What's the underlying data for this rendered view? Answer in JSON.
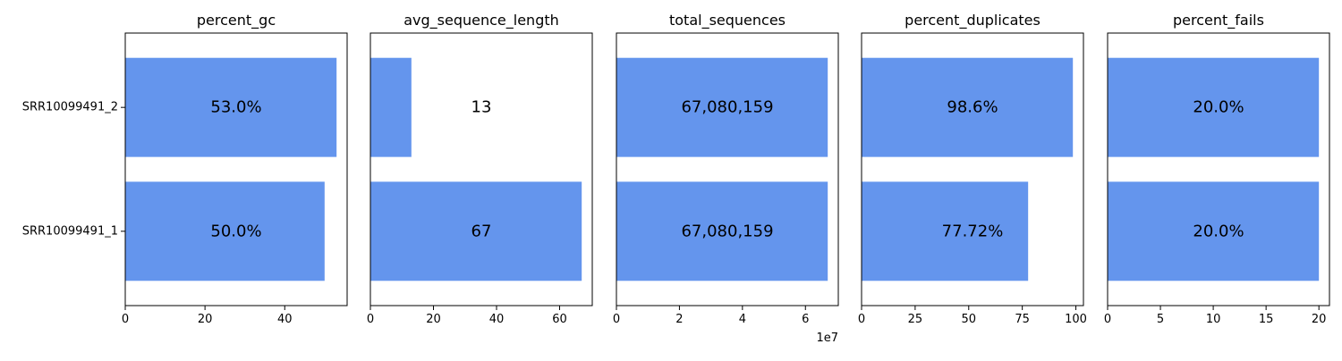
{
  "chart_data": [
    {
      "type": "bar",
      "orientation": "horizontal",
      "title": "percent_gc",
      "categories": [
        "SRR10099491_2",
        "SRR10099491_1"
      ],
      "values": [
        53.0,
        50.0
      ],
      "value_labels": [
        "53.0%",
        "50.0%"
      ],
      "xlim": [
        0,
        55.65
      ],
      "xticks": [
        0,
        20,
        40
      ],
      "offset_text": "",
      "show_category_labels": true
    },
    {
      "type": "bar",
      "orientation": "horizontal",
      "title": "avg_sequence_length",
      "categories": [
        "SRR10099491_2",
        "SRR10099491_1"
      ],
      "values": [
        13,
        67
      ],
      "value_labels": [
        "13",
        "67"
      ],
      "xlim": [
        0,
        70.35
      ],
      "xticks": [
        0,
        20,
        40,
        60
      ],
      "offset_text": "",
      "show_category_labels": false
    },
    {
      "type": "bar",
      "orientation": "horizontal",
      "title": "total_sequences",
      "categories": [
        "SRR10099491_2",
        "SRR10099491_1"
      ],
      "values": [
        67080159,
        67080159
      ],
      "value_labels": [
        "67,080,159",
        "67,080,159"
      ],
      "xlim": [
        0,
        70434167
      ],
      "xticks": [
        0,
        20000000,
        40000000,
        60000000
      ],
      "tick_scale": 10000000,
      "offset_text": "1e7",
      "show_category_labels": false
    },
    {
      "type": "bar",
      "orientation": "horizontal",
      "title": "percent_duplicates",
      "categories": [
        "SRR10099491_2",
        "SRR10099491_1"
      ],
      "values": [
        98.6,
        77.72
      ],
      "value_labels": [
        "98.6%",
        "77.72%"
      ],
      "xlim": [
        0,
        103.53
      ],
      "xticks": [
        0,
        25,
        50,
        75,
        100
      ],
      "offset_text": "",
      "show_category_labels": false
    },
    {
      "type": "bar",
      "orientation": "horizontal",
      "title": "percent_fails",
      "categories": [
        "SRR10099491_2",
        "SRR10099491_1"
      ],
      "values": [
        20.0,
        20.0
      ],
      "value_labels": [
        "20.0%",
        "20.0%"
      ],
      "xlim": [
        0,
        21
      ],
      "xticks": [
        0,
        5,
        10,
        15,
        20
      ],
      "offset_text": "",
      "show_category_labels": false
    }
  ],
  "colors": {
    "bar": "#6495ed",
    "axis": "#000000",
    "text": "#000000"
  }
}
